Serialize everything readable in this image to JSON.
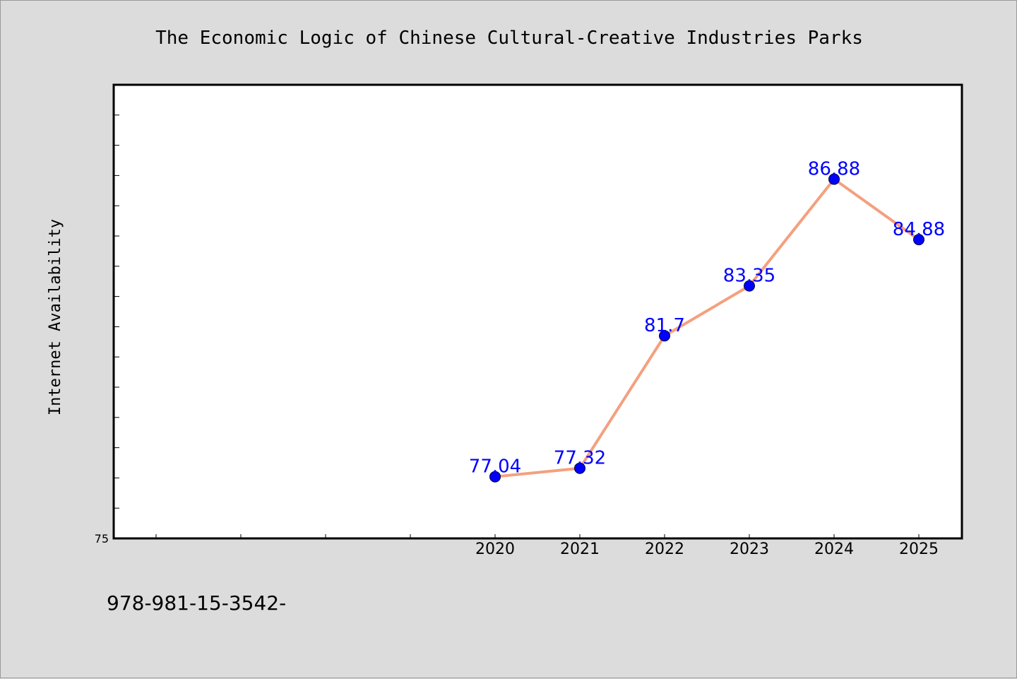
{
  "footer": {
    "text": "978-981-15-3542-"
  },
  "colors": {
    "background": "#dcdcdc",
    "plot_background": "#ffffff",
    "line": "#f4a07e",
    "marker": "#0000ff",
    "data_label": "#0000ff"
  },
  "chart_data": {
    "type": "line",
    "title": "The Economic Logic of Chinese Cultural-Creative Industries Parks",
    "xlabel": "",
    "ylabel": "Internet Availability",
    "categories": [
      "2020",
      "2021",
      "2022",
      "2023",
      "2024",
      "2025"
    ],
    "series": [
      {
        "values": [
          77.04,
          77.32,
          81.7,
          83.35,
          86.88,
          84.88
        ],
        "labels": [
          "77.04",
          "77.32",
          "81.7",
          "83.35",
          "86.88",
          "84.88"
        ]
      }
    ],
    "ylim": [
      75,
      90
    ],
    "ytick_labels": [
      "75"
    ],
    "grid": false,
    "legend": "none"
  }
}
